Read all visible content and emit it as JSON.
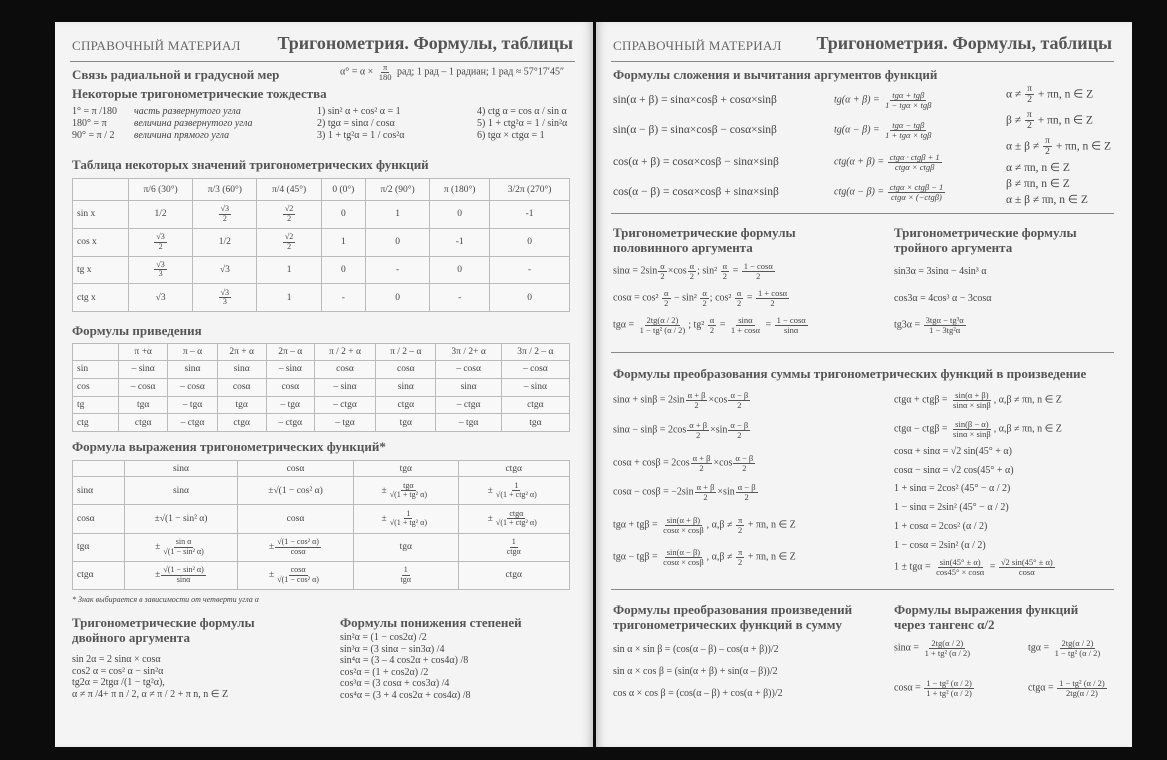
{
  "left": {
    "section": "СПРАВОЧНЫЙ МАТЕРИАЛ",
    "title": "Тригонометрия. Формулы, таблицы",
    "radian": {
      "heading": "Связь радиальной и градусной мер",
      "formula": [
        "α° = α × ",
        {
          "n": "π",
          "d": "180"
        },
        " рад; 1 рад – 1 радиан; 1 рад ≈ 57°17′45″"
      ]
    },
    "identities": {
      "heading": "Некоторые тригонометрические тождества",
      "defs": [
        {
          "f": "1° = π /180",
          "t": "часть развернутого угла"
        },
        {
          "f": "180° = π",
          "t": "величина развернутого угла"
        },
        {
          "f": "90° = π / 2",
          "t": "величина прямого угла"
        }
      ],
      "list1": [
        "1) sin² α + cos² α = 1",
        "2) tgα = sinα / cosα",
        "3) 1 + tg²α = 1 / cos²α"
      ],
      "list2": [
        "4) ctg α = cos α / sin α",
        "5) 1 + ctg²α = 1 / sin²α",
        "6) tgα × ctgα = 1"
      ]
    },
    "values_table": {
      "heading": "Таблица некоторых значений тригонометрических функций",
      "headers": [
        "",
        "π/6 (30°)",
        "π/3 (60°)",
        "π/4 (45°)",
        "0 (0°)",
        "π/2 (90°)",
        "π (180°)",
        "3/2π (270°)"
      ],
      "rows": [
        [
          "sin x",
          "1/2",
          {
            "n": "√3",
            "d": "2"
          },
          {
            "n": "√2",
            "d": "2"
          },
          "0",
          "1",
          "0",
          "-1"
        ],
        [
          "cos x",
          {
            "n": "√3",
            "d": "2"
          },
          "1/2",
          {
            "n": "√2",
            "d": "2"
          },
          "1",
          "0",
          "-1",
          "0"
        ],
        [
          "tg x",
          {
            "n": "√3",
            "d": "3"
          },
          "√3",
          "1",
          "0",
          "-",
          "0",
          "-"
        ],
        [
          "ctg x",
          "√3",
          {
            "n": "√3",
            "d": "3"
          },
          "1",
          "-",
          "0",
          "-",
          "0"
        ]
      ]
    },
    "reduction_table": {
      "heading": "Формулы приведения",
      "headers": [
        "",
        "π +α",
        "π – α",
        "2π + α",
        "2π – α",
        "π / 2 + α",
        "π / 2 – α",
        "3π / 2+ α",
        "3π / 2 – α"
      ],
      "rows": [
        [
          "sin",
          "– sinα",
          "sinα",
          "sinα",
          "– sinα",
          "cosα",
          "cosα",
          "– cosα",
          "– cosα"
        ],
        [
          "cos",
          "– cosα",
          "– cosα",
          "cosα",
          "cosα",
          "– sinα",
          "sinα",
          "sinα",
          "– sinα"
        ],
        [
          "tg",
          "tgα",
          "– tgα",
          "tgα",
          "– tgα",
          "– ctgα",
          "ctgα",
          "– ctgα",
          "ctgα"
        ],
        [
          "ctg",
          "ctgα",
          "– ctgα",
          "ctgα",
          "– ctgα",
          "– tgα",
          "tgα",
          "– tgα",
          "tgα"
        ]
      ]
    },
    "expression_table": {
      "heading": "Формула выражения тригонометрических функций*",
      "headers": [
        "",
        "sinα",
        "cosα",
        "tgα",
        "ctgα"
      ],
      "rows": [
        [
          "sinα",
          "sinα",
          "±√(1 − cos² α)",
          [
            "±",
            {
              "n": "tgα",
              "d": "√(1 + tg² α)"
            }
          ],
          [
            "±",
            {
              "n": "1",
              "d": "√(1 + ctg² α)"
            }
          ]
        ],
        [
          "cosα",
          "±√(1 − sin² α)",
          "cosα",
          [
            "±",
            {
              "n": "1",
              "d": "√(1 + tg² α)"
            }
          ],
          [
            "±",
            {
              "n": "ctgα",
              "d": "√(1 + ctg² α)"
            }
          ]
        ],
        [
          "tgα",
          [
            "±",
            {
              "n": "sin α",
              "d": "√(1 − sin² α)"
            }
          ],
          [
            "±",
            {
              "n": "√(1 − cos² α)",
              "d": "cosα"
            }
          ],
          "tgα",
          [
            {
              "n": "1",
              "d": "ctgα"
            }
          ]
        ],
        [
          "ctgα",
          [
            "±",
            {
              "n": "√(1 − sin² α)",
              "d": "sinα"
            }
          ],
          [
            "±",
            {
              "n": "cosα",
              "d": "√(1 − cos² α)"
            }
          ],
          [
            {
              "n": "1",
              "d": "tgα"
            }
          ],
          "ctgα"
        ]
      ],
      "footnote": "* Знак выбирается в зависимости от четверти угла α"
    },
    "double": {
      "heading": [
        "Тригонометрические формулы",
        "двойного аргумента"
      ],
      "lines": [
        "sin 2α = 2 sinα × cosα",
        "cos2 α = cos² α − sin²α",
        "tg2α = 2tgα /(1 − tg²α),",
        "α ≠ π /4+ π n / 2, α ≠ π / 2 + π n, n ∈ Z"
      ]
    },
    "power": {
      "heading": "Формулы понижения степеней",
      "lines": [
        "sin²α = (1 − cos2α) /2",
        "sin³α = (3 sinα − sin3α) /4",
        "sin⁴α = (3 – 4 cos2α + cos4α) /8",
        "cos²α = (1 + cos2α) /2",
        "cos³α = (3 cosα + cos3α) /4",
        "cos⁴α = (3 + 4 cos2α + cos4α) /8"
      ]
    }
  },
  "right": {
    "section": "СПРАВОЧНЫЙ МАТЕРИАЛ",
    "title": "Тригонометрия. Формулы, таблицы",
    "addition": {
      "heading": "Формулы сложения и вычитания аргументов функций",
      "left": [
        [
          "sin(α + β) = sinα×cosβ + cosα×sinβ"
        ],
        [
          "sin(α − β) = sinα×cosβ − cosα×sinβ"
        ],
        [
          "cos(α + β) = cosα×cosβ − sinα×sinβ"
        ],
        [
          "cos(α − β) = cosα×cosβ + sinα×sinβ"
        ]
      ],
      "middle": [
        [
          "tg(α + β) = ",
          {
            "n": "tgα + tgβ",
            "d": "1 − tgα × tgβ"
          }
        ],
        [
          "tg(α − β) = ",
          {
            "n": "tgα − tgβ",
            "d": "1 + tgα × tgβ"
          }
        ],
        [
          "ctg(α + β) = ",
          {
            "n": "ctgα · ctgβ + 1",
            "d": "ctgα × ctgβ"
          }
        ],
        [
          "ctg(α − β) = ",
          {
            "n": "ctgα × ctgβ − 1",
            "d": "ctgα × (−ctgβ)"
          }
        ]
      ],
      "conditions": [
        [
          "α ≠ ",
          {
            "n": "π",
            "d": "2"
          },
          " + πn, n ∈ Z"
        ],
        [
          "β ≠ ",
          {
            "n": "π",
            "d": "2"
          },
          " + πn, n ∈ Z"
        ],
        [
          "α ± β ≠ ",
          {
            "n": "π",
            "d": "2"
          },
          " + πn, n ∈ Z"
        ],
        [
          "α ≠ πn, n ∈ Z"
        ],
        [
          "β ≠ πn, n ∈ Z"
        ],
        [
          "α ± β ≠ πn, n ∈ Z"
        ]
      ]
    },
    "half": {
      "heading": [
        "Тригонометрические формулы",
        "половинного аргумента"
      ],
      "lines": [
        [
          "sinα = 2sin",
          {
            "n": "α",
            "d": "2"
          },
          "×cos",
          {
            "n": "α",
            "d": "2"
          },
          "; sin² ",
          {
            "n": "α",
            "d": "2"
          },
          " = ",
          {
            "n": "1 − cosα",
            "d": "2"
          }
        ],
        [
          "cosα = cos² ",
          {
            "n": "α",
            "d": "2"
          },
          " − sin² ",
          {
            "n": "α",
            "d": "2"
          },
          "; cos² ",
          {
            "n": "α",
            "d": "2"
          },
          " = ",
          {
            "n": "1 + cosα",
            "d": "2"
          }
        ],
        [
          "tgα = ",
          {
            "n": "2tg(α / 2)",
            "d": "1 − tg² (α / 2)"
          },
          "; tg² ",
          {
            "n": "α",
            "d": "2"
          },
          " = ",
          {
            "n": "sinα",
            "d": "1 + cosα"
          },
          " = ",
          {
            "n": "1 − cosα",
            "d": "sinα"
          }
        ]
      ]
    },
    "triple": {
      "heading": [
        "Тригонометрические формулы",
        "тройного аргумента"
      ],
      "lines": [
        [
          "sin3α = 3sinα − 4sin³ α"
        ],
        [
          "cos3α = 4cos³ α − 3cosα"
        ],
        [
          "tg3α = ",
          {
            "n": "3tgα − tg³α",
            "d": "1 − 3tg²α"
          }
        ]
      ]
    },
    "sum_to_product": {
      "heading": "Формулы преобразования суммы тригонометрических функций в произведение",
      "left": [
        [
          "sinα + sinβ = 2sin",
          {
            "n": "α + β",
            "d": "2"
          },
          "×cos",
          {
            "n": "α − β",
            "d": "2"
          }
        ],
        [
          "sinα − sinβ = 2cos",
          {
            "n": "α + β",
            "d": "2"
          },
          "×sin",
          {
            "n": "α − β",
            "d": "2"
          }
        ],
        [
          "cosα + cosβ = 2cos",
          {
            "n": "α + β",
            "d": "2"
          },
          "×cos",
          {
            "n": "α − β",
            "d": "2"
          }
        ],
        [
          "cosα − cosβ = −2sin",
          {
            "n": "α + β",
            "d": "2"
          },
          "×sin",
          {
            "n": "α − β",
            "d": "2"
          }
        ],
        [
          "tgα + tgβ = ",
          {
            "n": "sin(α + β)",
            "d": "cosα × cosβ"
          },
          ", α,β ≠ ",
          {
            "n": "π",
            "d": "2"
          },
          " + πn, n ∈ Z"
        ],
        [
          "tgα − tgβ = ",
          {
            "n": "sin(α − β)",
            "d": "cosα × cosβ"
          },
          ", α,β ≠ ",
          {
            "n": "π",
            "d": "2"
          },
          " + πn, n ∈ Z"
        ]
      ],
      "right": [
        [
          "ctgα + ctgβ = ",
          {
            "n": "sin(α + β)",
            "d": "sinα × sinβ"
          },
          ", α,β ≠ πn, n ∈ Z"
        ],
        [
          "ctgα − ctgβ = ",
          {
            "n": "sin(β − α)",
            "d": "sinα × sinβ"
          },
          ", α,β ≠ πn, n ∈ Z"
        ],
        [
          "cosα + sinα = √2 sin(45° + α)"
        ],
        [
          "cosα − sinα = √2 cos(45° + α)"
        ],
        [
          "1 + sinα = 2cos² (45° − α / 2)"
        ],
        [
          "1 − sinα = 2sin² (45° − α / 2)"
        ],
        [
          "1 + cosα = 2cos² (α / 2)"
        ],
        [
          "1 − cosα = 2sin² (α / 2)"
        ],
        [
          "1 ± tgα = ",
          {
            "n": "sin(45° ± α)",
            "d": "cos45° × cosα"
          },
          " = ",
          {
            "n": "√2 sin(45° ± α)",
            "d": "cosα"
          }
        ]
      ]
    },
    "product_to_sum": {
      "heading": [
        "Формулы преобразования произведений",
        "тригонометрических функций в сумму"
      ],
      "lines": [
        "sin α × sin β = (cos(α – β) – cos(α + β))/2",
        "sin α × cos β = (sin(α + β) + sin(α – β))/2",
        "cos α × cos β = (cos(α – β) + cos(α + β))/2"
      ]
    },
    "tangent_half": {
      "heading": [
        "Формулы выражения функций",
        "через тангенс α/2"
      ],
      "lines": [
        [
          "sinα = ",
          {
            "n": "2tg(α / 2)",
            "d": "1 + tg² (α / 2)"
          }
        ],
        [
          "tgα = ",
          {
            "n": "2tg(α / 2)",
            "d": "1 − tg² (α / 2)"
          }
        ],
        [
          "cosα = ",
          {
            "n": "1 − tg² (α / 2)",
            "d": "1 + tg² (α / 2)"
          }
        ],
        [
          "ctgα = ",
          {
            "n": "1 − tg² (α / 2)",
            "d": "2tg(α / 2)"
          }
        ]
      ]
    }
  }
}
